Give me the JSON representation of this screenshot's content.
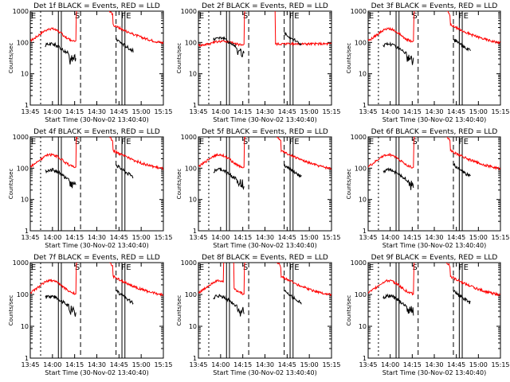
{
  "colors": {
    "events": "#000000",
    "lld": "#ff0000",
    "background": "#ffffff",
    "axes": "#000000"
  },
  "chart_data": [
    {
      "type": "line",
      "title": "Det 1f BLACK = Events, RED = LLD",
      "xlabel": "Start Time (30-Nov-02 13:40:40)",
      "ylabel": "Counts/sec",
      "y_scale": "log",
      "ylim": [
        1,
        1000
      ],
      "y_ticks": [
        "1",
        "10",
        "100",
        "1000"
      ],
      "x_ticks": [
        "13:45",
        "14:00",
        "14:15",
        "14:30",
        "14:45",
        "15:00",
        "15:15"
      ],
      "markers": [
        "E",
        "S",
        "F",
        "E"
      ],
      "series": [
        {
          "name": "BLACK = Events",
          "color": "#000000"
        },
        {
          "name": "RED = LLD",
          "color": "#ff0000"
        }
      ]
    },
    {
      "type": "line",
      "title": "Det 2f BLACK = Events, RED = LLD",
      "xlabel": "Start Time (30-Nov-02 13:40:40)",
      "ylabel": "Counts/sec",
      "y_scale": "log",
      "ylim": [
        1,
        1000
      ],
      "y_ticks": [
        "1",
        "10",
        "100",
        "1000"
      ],
      "x_ticks": [
        "13:45",
        "14:00",
        "14:15",
        "14:30",
        "14:45",
        "15:00",
        "15:15"
      ],
      "markers": [
        "E",
        "S",
        "F",
        "E"
      ],
      "series": [
        {
          "name": "BLACK = Events",
          "color": "#000000"
        },
        {
          "name": "RED = LLD",
          "color": "#ff0000"
        }
      ]
    },
    {
      "type": "line",
      "title": "Det 3f BLACK = Events, RED = LLD",
      "xlabel": "Start Time (30-Nov-02 13:40:40)",
      "ylabel": "Counts/sec",
      "y_scale": "log",
      "ylim": [
        1,
        1000
      ],
      "y_ticks": [
        "1",
        "10",
        "100",
        "1000"
      ],
      "x_ticks": [
        "13:45",
        "14:00",
        "14:15",
        "14:30",
        "14:45",
        "15:00",
        "15:15"
      ],
      "markers": [
        "E",
        "S",
        "F",
        "E"
      ],
      "series": [
        {
          "name": "BLACK = Events",
          "color": "#000000"
        },
        {
          "name": "RED = LLD",
          "color": "#ff0000"
        }
      ]
    },
    {
      "type": "line",
      "title": "Det 4f BLACK = Events, RED = LLD",
      "xlabel": "Start Time (30-Nov-02 13:40:40)",
      "ylabel": "Counts/sec",
      "y_scale": "log",
      "ylim": [
        1,
        1000
      ],
      "y_ticks": [
        "1",
        "10",
        "100",
        "1000"
      ],
      "x_ticks": [
        "13:45",
        "14:00",
        "14:15",
        "14:30",
        "14:45",
        "15:00",
        "15:15"
      ],
      "markers": [
        "E",
        "S",
        "F",
        "E"
      ],
      "series": [
        {
          "name": "BLACK = Events",
          "color": "#000000"
        },
        {
          "name": "RED = LLD",
          "color": "#ff0000"
        }
      ]
    },
    {
      "type": "line",
      "title": "Det 5f BLACK = Events, RED = LLD",
      "xlabel": "Start Time (30-Nov-02 13:40:40)",
      "ylabel": "Counts/sec",
      "y_scale": "log",
      "ylim": [
        1,
        1000
      ],
      "y_ticks": [
        "1",
        "10",
        "100",
        "1000"
      ],
      "x_ticks": [
        "13:45",
        "14:00",
        "14:15",
        "14:30",
        "14:45",
        "15:00",
        "15:15"
      ],
      "markers": [
        "E",
        "S",
        "F",
        "E"
      ],
      "series": [
        {
          "name": "BLACK = Events",
          "color": "#000000"
        },
        {
          "name": "RED = LLD",
          "color": "#ff0000"
        }
      ]
    },
    {
      "type": "line",
      "title": "Det 6f BLACK = Events, RED = LLD",
      "xlabel": "Start Time (30-Nov-02 13:40:40)",
      "ylabel": "Counts/sec",
      "y_scale": "log",
      "ylim": [
        1,
        1000
      ],
      "y_ticks": [
        "1",
        "10",
        "100",
        "1000"
      ],
      "x_ticks": [
        "13:45",
        "14:00",
        "14:15",
        "14:30",
        "14:45",
        "15:00",
        "15:15"
      ],
      "markers": [
        "E",
        "S",
        "F",
        "E"
      ],
      "series": [
        {
          "name": "BLACK = Events",
          "color": "#000000"
        },
        {
          "name": "RED = LLD",
          "color": "#ff0000"
        }
      ]
    },
    {
      "type": "line",
      "title": "Det 7f BLACK = Events, RED = LLD",
      "xlabel": "Start Time (30-Nov-02 13:40:40)",
      "ylabel": "Counts/sec",
      "y_scale": "log",
      "ylim": [
        1,
        1000
      ],
      "y_ticks": [
        "1",
        "10",
        "100",
        "1000"
      ],
      "x_ticks": [
        "13:45",
        "14:00",
        "14:15",
        "14:30",
        "14:45",
        "15:00",
        "15:15"
      ],
      "markers": [
        "E",
        "S",
        "F",
        "E"
      ],
      "series": [
        {
          "name": "BLACK = Events",
          "color": "#000000"
        },
        {
          "name": "RED = LLD",
          "color": "#ff0000"
        }
      ]
    },
    {
      "type": "line",
      "title": "Det 8f BLACK = Events, RED = LLD",
      "xlabel": "Start Time (30-Nov-02 13:40:40)",
      "ylabel": "Counts/sec",
      "y_scale": "log",
      "ylim": [
        1,
        1000
      ],
      "y_ticks": [
        "1",
        "10",
        "100",
        "1000"
      ],
      "x_ticks": [
        "13:45",
        "14:00",
        "14:15",
        "14:30",
        "14:45",
        "15:00",
        "15:15"
      ],
      "markers": [
        "E",
        "S",
        "F",
        "E"
      ],
      "series": [
        {
          "name": "BLACK = Events",
          "color": "#000000"
        },
        {
          "name": "RED = LLD",
          "color": "#ff0000"
        }
      ]
    },
    {
      "type": "line",
      "title": "Det 9f BLACK = Events, RED = LLD",
      "xlabel": "Start Time (30-Nov-02 13:40:40)",
      "ylabel": "Counts/sec",
      "y_scale": "log",
      "ylim": [
        1,
        1000
      ],
      "y_ticks": [
        "1",
        "10",
        "100",
        "1000"
      ],
      "x_ticks": [
        "13:45",
        "14:00",
        "14:15",
        "14:30",
        "14:45",
        "15:00",
        "15:15"
      ],
      "markers": [
        "E",
        "S",
        "F",
        "E"
      ],
      "series": [
        {
          "name": "BLACK = Events",
          "color": "#000000"
        },
        {
          "name": "RED = LLD",
          "color": "#ff0000"
        }
      ]
    }
  ]
}
